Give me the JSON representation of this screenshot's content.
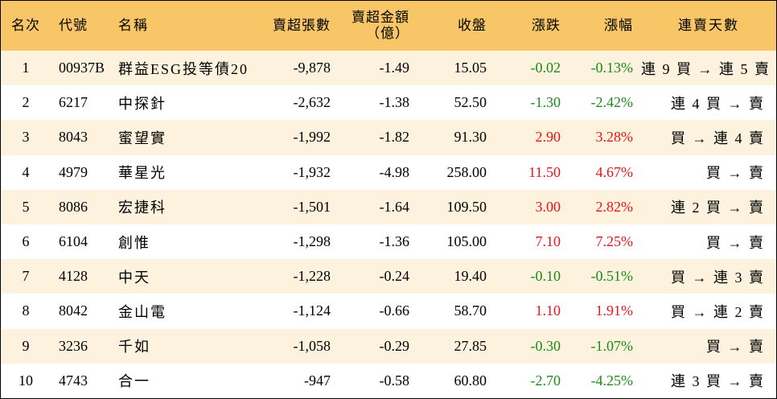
{
  "colors": {
    "header_bg": "#f8c567",
    "stripe_bg": "#fcf2dd",
    "up": "#e8141a",
    "down": "#1a8a1a"
  },
  "headers": {
    "rank": "名次",
    "code": "代號",
    "name": "名稱",
    "sell_lots": "賣超張數",
    "sell_amount_line1": "賣超金額",
    "sell_amount_line2": "（億）",
    "close": "收盤",
    "change": "漲跌",
    "pct": "漲幅",
    "days": "連賣天數"
  },
  "rows": [
    {
      "rank": "1",
      "code": "00937B",
      "name": "群益ESG投等債20",
      "sell_lots": "-9,878",
      "sell_amount": "-1.49",
      "close": "15.05",
      "change": "-0.02",
      "pct": "-0.13%",
      "days": "連 9 買 → 連 5 賣",
      "dir": "neg"
    },
    {
      "rank": "2",
      "code": "6217",
      "name": "中探針",
      "sell_lots": "-2,632",
      "sell_amount": "-1.38",
      "close": "52.50",
      "change": "-1.30",
      "pct": "-2.42%",
      "days": "連 4 買 → 賣",
      "dir": "neg"
    },
    {
      "rank": "3",
      "code": "8043",
      "name": "蜜望實",
      "sell_lots": "-1,992",
      "sell_amount": "-1.82",
      "close": "91.30",
      "change": "2.90",
      "pct": "3.28%",
      "days": "買 → 連 4 賣",
      "dir": "pos"
    },
    {
      "rank": "4",
      "code": "4979",
      "name": "華星光",
      "sell_lots": "-1,932",
      "sell_amount": "-4.98",
      "close": "258.00",
      "change": "11.50",
      "pct": "4.67%",
      "days": "買 → 賣",
      "dir": "pos"
    },
    {
      "rank": "5",
      "code": "8086",
      "name": "宏捷科",
      "sell_lots": "-1,501",
      "sell_amount": "-1.64",
      "close": "109.50",
      "change": "3.00",
      "pct": "2.82%",
      "days": "連 2 買 → 賣",
      "dir": "pos"
    },
    {
      "rank": "6",
      "code": "6104",
      "name": "創惟",
      "sell_lots": "-1,298",
      "sell_amount": "-1.36",
      "close": "105.00",
      "change": "7.10",
      "pct": "7.25%",
      "days": "買 → 賣",
      "dir": "pos"
    },
    {
      "rank": "7",
      "code": "4128",
      "name": "中天",
      "sell_lots": "-1,228",
      "sell_amount": "-0.24",
      "close": "19.40",
      "change": "-0.10",
      "pct": "-0.51%",
      "days": "買 → 連 3 賣",
      "dir": "neg"
    },
    {
      "rank": "8",
      "code": "8042",
      "name": "金山電",
      "sell_lots": "-1,124",
      "sell_amount": "-0.66",
      "close": "58.70",
      "change": "1.10",
      "pct": "1.91%",
      "days": "買 → 連 2 賣",
      "dir": "pos"
    },
    {
      "rank": "9",
      "code": "3236",
      "name": "千如",
      "sell_lots": "-1,058",
      "sell_amount": "-0.29",
      "close": "27.85",
      "change": "-0.30",
      "pct": "-1.07%",
      "days": "買 → 賣",
      "dir": "neg"
    },
    {
      "rank": "10",
      "code": "4743",
      "name": "合一",
      "sell_lots": "-947",
      "sell_amount": "-0.58",
      "close": "60.80",
      "change": "-2.70",
      "pct": "-4.25%",
      "days": "連 3 買 → 賣",
      "dir": "neg"
    }
  ]
}
